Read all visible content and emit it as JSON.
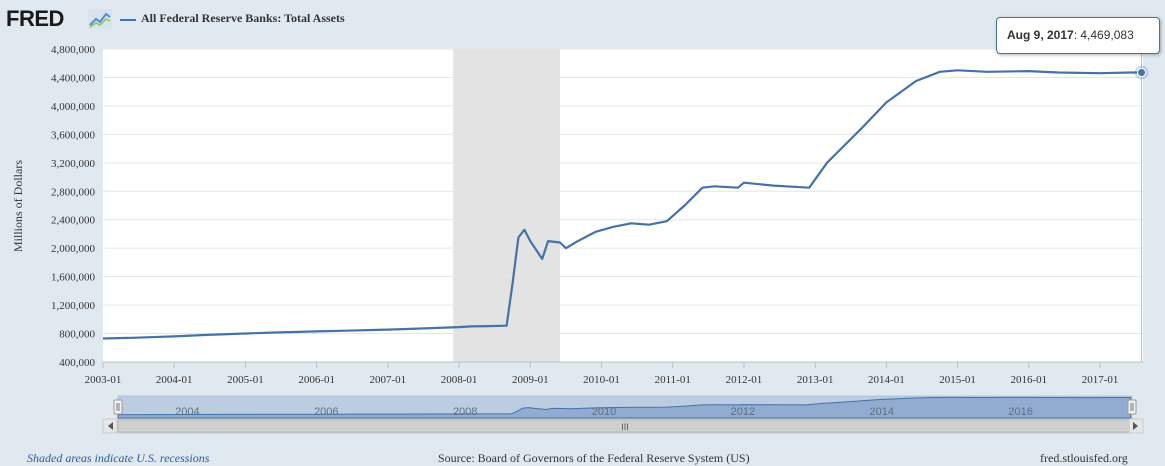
{
  "header": {
    "logo": "FRED",
    "series_title": "All Federal Reserve Banks: Total Assets"
  },
  "tooltip": {
    "date": "Aug 9, 2017",
    "value": "4,469,083"
  },
  "colors": {
    "series": "#4572a7",
    "recession": "#e3e3e3",
    "background": "#e1e9f0",
    "plot": "#ffffff"
  },
  "footer": {
    "recession_note": "Shaded areas indicate U.S. recessions",
    "source": "Source: Board of Governors of the Federal Reserve System (US)",
    "site": "fred.stlouisfed.org"
  },
  "navigator": {
    "labels": [
      "2004",
      "2006",
      "2008",
      "2010",
      "2012",
      "2014",
      "2016"
    ],
    "scroll_grip": "III"
  },
  "chart_data": {
    "type": "line",
    "title": "All Federal Reserve Banks: Total Assets",
    "ylabel": "Millions of Dollars",
    "xlabel": "",
    "xlim": [
      "2003-01",
      "2017-08"
    ],
    "ylim": [
      400000,
      4800000
    ],
    "xticks": [
      "2003-01",
      "2004-01",
      "2005-01",
      "2006-01",
      "2007-01",
      "2008-01",
      "2009-01",
      "2010-01",
      "2011-01",
      "2012-01",
      "2013-01",
      "2014-01",
      "2015-01",
      "2016-01",
      "2017-01"
    ],
    "yticks": [
      "400,000",
      "800,000",
      "1,200,000",
      "1,600,000",
      "2,000,000",
      "2,400,000",
      "2,800,000",
      "3,200,000",
      "3,600,000",
      "4,000,000",
      "4,400,000",
      "4,800,000"
    ],
    "grid": true,
    "recessions": [
      [
        "2007-12",
        "2009-06"
      ]
    ],
    "series": [
      {
        "name": "All Federal Reserve Banks: Total Assets",
        "points": [
          [
            "2003-01",
            730000
          ],
          [
            "2003-06",
            740000
          ],
          [
            "2004-01",
            760000
          ],
          [
            "2004-06",
            780000
          ],
          [
            "2005-01",
            800000
          ],
          [
            "2005-06",
            815000
          ],
          [
            "2006-01",
            830000
          ],
          [
            "2006-06",
            840000
          ],
          [
            "2007-01",
            855000
          ],
          [
            "2007-06",
            870000
          ],
          [
            "2008-01",
            890000
          ],
          [
            "2008-03",
            900000
          ],
          [
            "2008-06",
            905000
          ],
          [
            "2008-09",
            910000
          ],
          [
            "2008-10",
            1500000
          ],
          [
            "2008-11",
            2150000
          ],
          [
            "2008-12",
            2260000
          ],
          [
            "2009-01",
            2100000
          ],
          [
            "2009-03",
            1850000
          ],
          [
            "2009-04",
            2100000
          ],
          [
            "2009-06",
            2080000
          ],
          [
            "2009-07",
            2000000
          ],
          [
            "2009-09",
            2100000
          ],
          [
            "2009-12",
            2230000
          ],
          [
            "2010-03",
            2300000
          ],
          [
            "2010-06",
            2350000
          ],
          [
            "2010-09",
            2330000
          ],
          [
            "2010-12",
            2380000
          ],
          [
            "2011-03",
            2600000
          ],
          [
            "2011-06",
            2850000
          ],
          [
            "2011-08",
            2870000
          ],
          [
            "2011-12",
            2850000
          ],
          [
            "2012-01",
            2920000
          ],
          [
            "2012-06",
            2880000
          ],
          [
            "2012-12",
            2850000
          ],
          [
            "2013-03",
            3200000
          ],
          [
            "2013-06",
            3450000
          ],
          [
            "2013-09",
            3700000
          ],
          [
            "2014-01",
            4050000
          ],
          [
            "2014-06",
            4350000
          ],
          [
            "2014-10",
            4480000
          ],
          [
            "2015-01",
            4500000
          ],
          [
            "2015-06",
            4480000
          ],
          [
            "2016-01",
            4490000
          ],
          [
            "2016-06",
            4470000
          ],
          [
            "2017-01",
            4460000
          ],
          [
            "2017-06",
            4470000
          ],
          [
            "2017-08",
            4469083
          ]
        ]
      }
    ]
  }
}
